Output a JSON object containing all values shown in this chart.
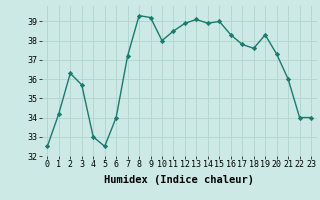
{
  "x": [
    0,
    1,
    2,
    3,
    4,
    5,
    6,
    7,
    8,
    9,
    10,
    11,
    12,
    13,
    14,
    15,
    16,
    17,
    18,
    19,
    20,
    21,
    22,
    23
  ],
  "y": [
    32.5,
    34.2,
    36.3,
    35.7,
    33.0,
    32.5,
    34.0,
    37.2,
    39.3,
    39.2,
    38.0,
    38.5,
    38.9,
    39.1,
    38.9,
    39.0,
    38.3,
    37.8,
    37.6,
    38.3,
    37.3,
    36.0,
    34.0,
    34.0
  ],
  "line_color": "#1a7a6e",
  "marker": "D",
  "marker_size": 2.2,
  "bg_color": "#cce9e5",
  "grid_color": "#b0d4d0",
  "xlabel": "Humidex (Indice chaleur)",
  "ylim": [
    32,
    39.8
  ],
  "xlim": [
    -0.5,
    23.5
  ],
  "yticks": [
    32,
    33,
    34,
    35,
    36,
    37,
    38,
    39
  ],
  "xticks": [
    0,
    1,
    2,
    3,
    4,
    5,
    6,
    7,
    8,
    9,
    10,
    11,
    12,
    13,
    14,
    15,
    16,
    17,
    18,
    19,
    20,
    21,
    22,
    23
  ],
  "tick_fontsize": 6,
  "label_fontsize": 7.5
}
